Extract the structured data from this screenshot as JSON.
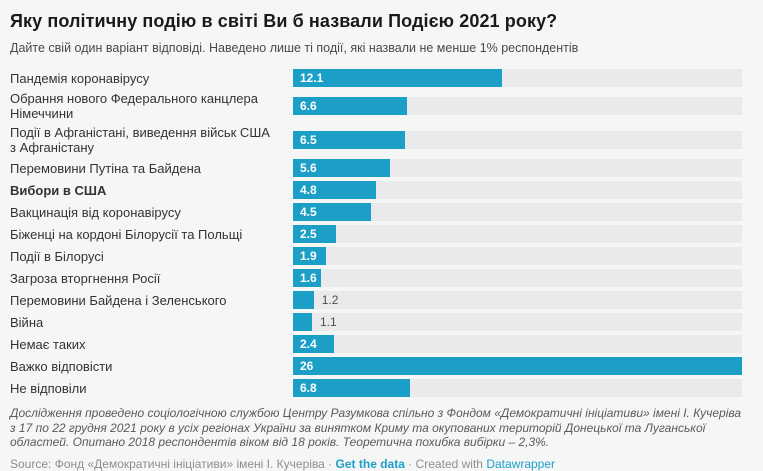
{
  "header": {
    "title": "Яку політичну подію в світі Ви б назвали Подією 2021 року?",
    "subtitle": "Дайте свій один варіант відповіді. Наведено лише ті події, які назвали не менше 1% респондентів"
  },
  "colors": {
    "bar": "#1b9fc6",
    "track": "#e9eaeb",
    "background": "#f5f7f7",
    "link": "#1d9fc7",
    "value_inside": "#ffffff",
    "value_outside": "#4d4d4d"
  },
  "chart_data": {
    "type": "bar",
    "orientation": "horizontal",
    "title": "Яку політичну подію в світі Ви б назвали Подією 2021 року?",
    "subtitle": "Дайте свій один варіант відповіді. Наведено лише ті події, які назвали не менше 1% респондентів",
    "xlim": [
      0,
      26
    ],
    "grid": false,
    "legend": false,
    "categories": [
      "Пандемія коронавірусу",
      "Обрання нового Федерального канцлера Німеччини",
      "Події в Афганістані, виведення військ США з Афганістану",
      "Перемовини Путіна та Байдена",
      "Вибори в США",
      "Вакцинація від коронавірусу",
      "Біженці на кордоні Білорусії та Польщі",
      "Події в Білорусі",
      "Загроза вторгнення Росії",
      "Перемовини Байдена і Зеленського",
      "Війна",
      "Немає таких",
      "Важко відповісти",
      "Не відповіли"
    ],
    "values": [
      12.1,
      6.6,
      6.5,
      5.6,
      4.8,
      4.5,
      2.5,
      1.9,
      1.6,
      1.2,
      1.1,
      2.4,
      26,
      6.8
    ],
    "value_labels": [
      "12.1",
      "6.6",
      "6.5",
      "5.6",
      "4.8",
      "4.5",
      "2.5",
      "1.9",
      "1.6",
      "1.2",
      "1.1",
      "2.4",
      "26",
      "6.8"
    ],
    "bold_flags": [
      false,
      false,
      false,
      false,
      true,
      false,
      false,
      false,
      false,
      false,
      false,
      false,
      false,
      false
    ]
  },
  "footer": {
    "notes": "Дослідження проведено соціологічною службою Центру Разумкова спільно з Фондом «Демократичні ініціативи» імені І. Кучеріва з 17 по 22 грудня 2021 року в усіх регіонах України за винятком Криму та окупованих територій Донецької та Луганської областей. Опитано 2018 респондентів віком від 18 років. Теоретична похибка вибірки – 2,3%.",
    "source_label": "Source:",
    "source_name": "Фонд «Демократичні ініціативи» імені І. Кучеріва",
    "separator": "·",
    "get_data_label": "Get the data",
    "created_with_label": "Created with",
    "datawrapper_label": "Datawrapper"
  }
}
